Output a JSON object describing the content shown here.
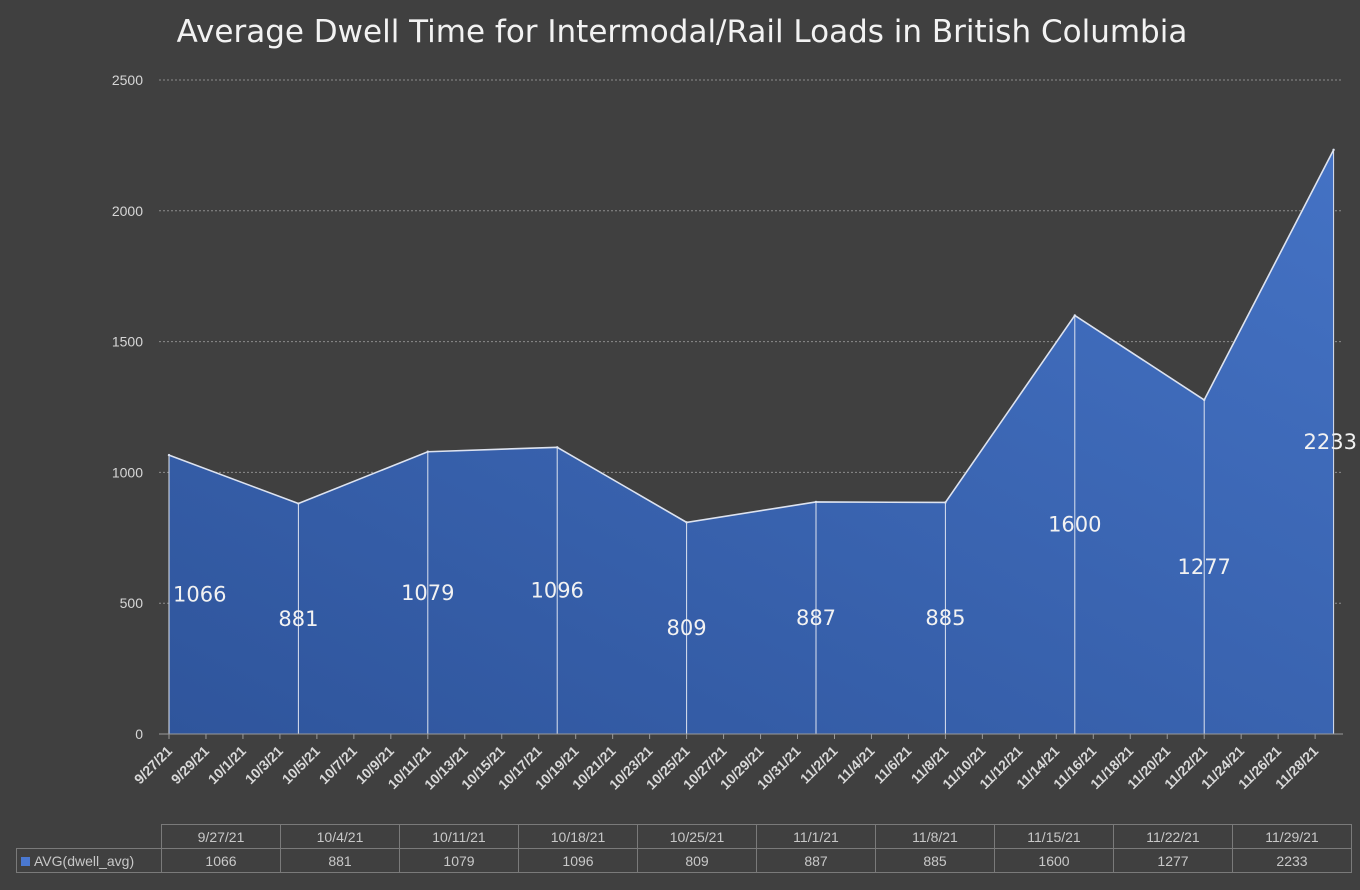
{
  "chart_data": {
    "type": "area",
    "title": "Average Dwell Time for Intermodal/Rail Loads in British Columbia",
    "xlabel": "",
    "ylabel": "",
    "ylim": [
      0,
      2500
    ],
    "yticks": [
      0,
      500,
      1000,
      1500,
      2000,
      2500
    ],
    "grid": true,
    "legend": "bottom-left (data table)",
    "x": [
      "9/27/21",
      "10/4/21",
      "10/11/21",
      "10/18/21",
      "10/25/21",
      "11/1/21",
      "11/8/21",
      "11/15/21",
      "11/22/21",
      "11/29/21"
    ],
    "x_tick_labels": [
      "9/27/21",
      "9/29/21",
      "10/1/21",
      "10/3/21",
      "10/5/21",
      "10/7/21",
      "10/9/21",
      "10/11/21",
      "10/13/21",
      "10/15/21",
      "10/17/21",
      "10/19/21",
      "10/21/21",
      "10/23/21",
      "10/25/21",
      "10/27/21",
      "10/29/21",
      "10/31/21",
      "11/2/21",
      "11/4/21",
      "11/6/21",
      "11/8/21",
      "11/10/21",
      "11/12/21",
      "11/14/21",
      "11/16/21",
      "11/18/21",
      "11/20/21",
      "11/22/21",
      "11/24/21",
      "11/26/21",
      "11/28/21"
    ],
    "series": [
      {
        "name": "AVG(dwell_avg)",
        "values": [
          1066,
          881,
          1079,
          1096,
          809,
          887,
          885,
          1600,
          1277,
          2233
        ],
        "color": "#4472c4"
      }
    ],
    "data_labels": [
      "1066",
      "881",
      "1079",
      "1096",
      "809",
      "887",
      "885",
      "1600",
      "1277",
      "2233"
    ]
  },
  "colors": {
    "background": "#404040",
    "area_dark": "#2f559c",
    "area_light": "#4472c4",
    "outline": "#dde3f0",
    "grid": "#8c8c8c"
  }
}
